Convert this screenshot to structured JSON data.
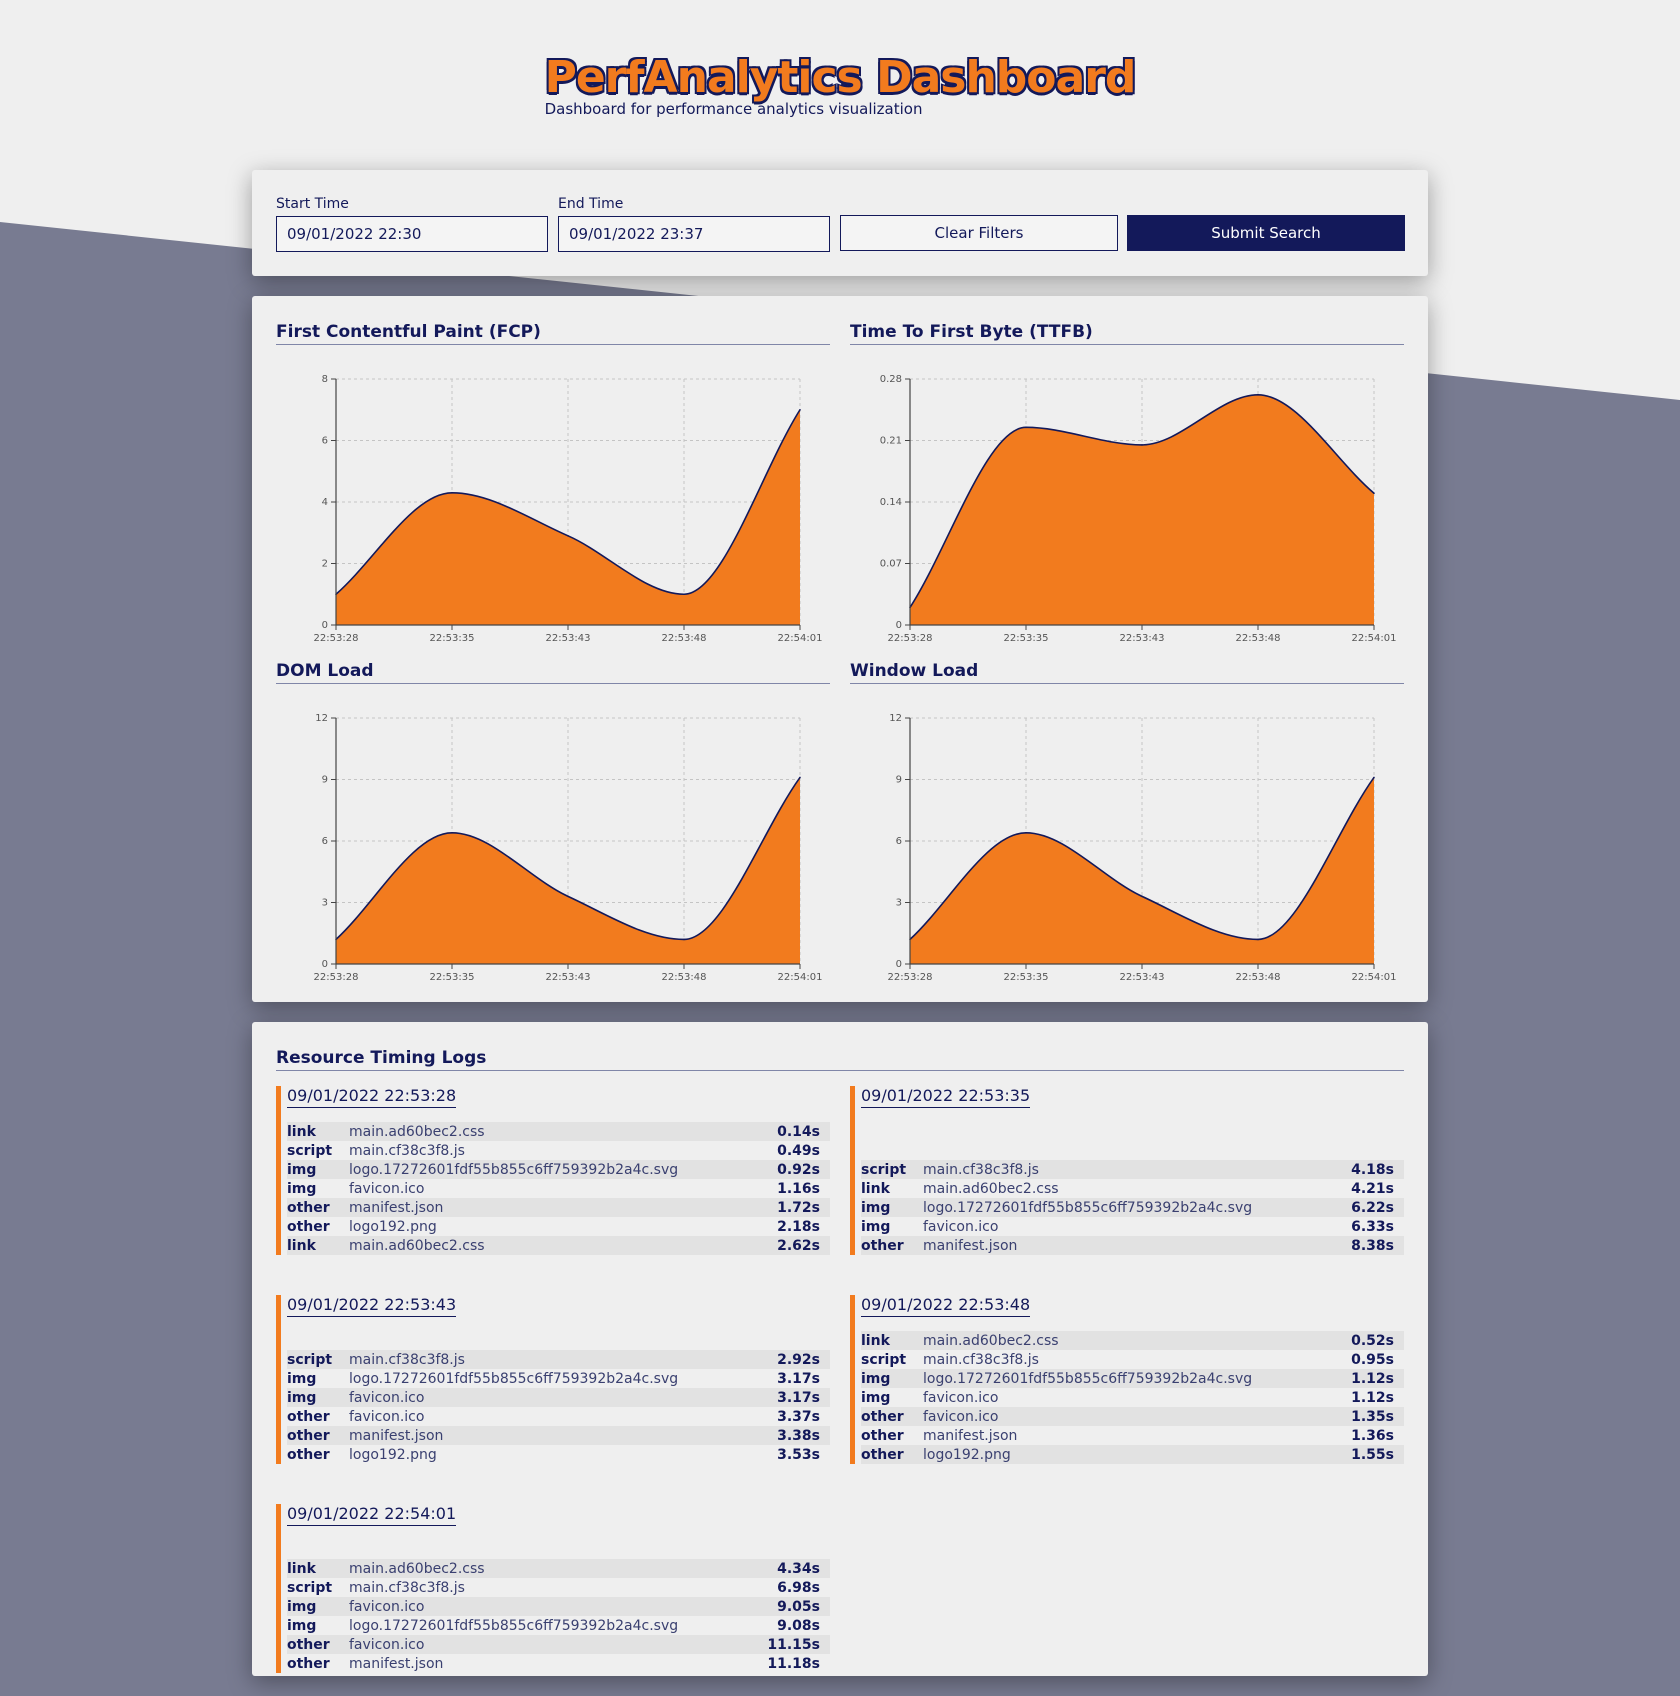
{
  "app": {
    "title": "PerfAnalytics Dashboard",
    "subtitle": "Dashboard for performance analytics visualization"
  },
  "filters": {
    "start_label": "Start Time",
    "start_value": "09/01/2022 22:30",
    "end_label": "End Time",
    "end_value": "09/01/2022 23:37",
    "clear_label": "Clear Filters",
    "submit_label": "Submit Search"
  },
  "colors": {
    "accent": "#f27b1e",
    "navy": "#13195a",
    "background": "#efefef",
    "band": "#787b91"
  },
  "chart_data": [
    {
      "type": "area",
      "title": "First Contentful Paint (FCP)",
      "x": [
        "22:53:28",
        "22:53:35",
        "22:53:43",
        "22:53:48",
        "22:54:01"
      ],
      "y_ticks": [
        "0",
        "2",
        "4",
        "6",
        "8"
      ],
      "ylim": [
        0,
        8
      ],
      "series": [
        {
          "values": [
            1.0,
            4.3,
            2.9,
            1.0,
            7.0
          ]
        }
      ],
      "grid": true
    },
    {
      "type": "area",
      "title": "Time To First Byte (TTFB)",
      "x": [
        "22:53:28",
        "22:53:35",
        "22:53:43",
        "22:53:48",
        "22:54:01"
      ],
      "y_ticks": [
        "0",
        "0.07",
        "0.14",
        "0.21",
        "0.28"
      ],
      "ylim": [
        0,
        0.28
      ],
      "series": [
        {
          "values": [
            0.02,
            0.225,
            0.205,
            0.262,
            0.15
          ]
        }
      ],
      "grid": true
    },
    {
      "type": "area",
      "title": "DOM Load",
      "x": [
        "22:53:28",
        "22:53:35",
        "22:53:43",
        "22:53:48",
        "22:54:01"
      ],
      "y_ticks": [
        "0",
        "3",
        "6",
        "9",
        "12"
      ],
      "ylim": [
        0,
        12
      ],
      "series": [
        {
          "values": [
            1.2,
            6.4,
            3.3,
            1.2,
            9.1
          ]
        }
      ],
      "grid": true
    },
    {
      "type": "area",
      "title": "Window Load",
      "x": [
        "22:53:28",
        "22:53:35",
        "22:53:43",
        "22:53:48",
        "22:54:01"
      ],
      "y_ticks": [
        "0",
        "3",
        "6",
        "9",
        "12"
      ],
      "ylim": [
        0,
        12
      ],
      "series": [
        {
          "values": [
            1.2,
            6.4,
            3.3,
            1.2,
            9.1
          ]
        }
      ],
      "grid": true
    }
  ],
  "logs": {
    "title": "Resource Timing Logs",
    "groups": [
      {
        "time": "09/01/2022 22:53:28",
        "rows": [
          {
            "type": "link",
            "name": "main.ad60bec2.css",
            "dur": "0.14s"
          },
          {
            "type": "script",
            "name": "main.cf38c3f8.js",
            "dur": "0.49s"
          },
          {
            "type": "img",
            "name": "logo.17272601fdf55b855c6ff759392b2a4c.svg",
            "dur": "0.92s"
          },
          {
            "type": "img",
            "name": "favicon.ico",
            "dur": "1.16s"
          },
          {
            "type": "other",
            "name": "manifest.json",
            "dur": "1.72s"
          },
          {
            "type": "other",
            "name": "logo192.png",
            "dur": "2.18s"
          },
          {
            "type": "link",
            "name": "main.ad60bec2.css",
            "dur": "2.62s"
          }
        ]
      },
      {
        "time": "09/01/2022 22:53:35",
        "rows": [
          {
            "type": "script",
            "name": "main.cf38c3f8.js",
            "dur": "4.18s"
          },
          {
            "type": "link",
            "name": "main.ad60bec2.css",
            "dur": "4.21s"
          },
          {
            "type": "img",
            "name": "logo.17272601fdf55b855c6ff759392b2a4c.svg",
            "dur": "6.22s"
          },
          {
            "type": "img",
            "name": "favicon.ico",
            "dur": "6.33s"
          },
          {
            "type": "other",
            "name": "manifest.json",
            "dur": "8.38s"
          }
        ]
      },
      {
        "time": "09/01/2022 22:53:43",
        "rows": [
          {
            "type": "script",
            "name": "main.cf38c3f8.js",
            "dur": "2.92s"
          },
          {
            "type": "img",
            "name": "logo.17272601fdf55b855c6ff759392b2a4c.svg",
            "dur": "3.17s"
          },
          {
            "type": "img",
            "name": "favicon.ico",
            "dur": "3.17s"
          },
          {
            "type": "other",
            "name": "favicon.ico",
            "dur": "3.37s"
          },
          {
            "type": "other",
            "name": "manifest.json",
            "dur": "3.38s"
          },
          {
            "type": "other",
            "name": "logo192.png",
            "dur": "3.53s"
          }
        ]
      },
      {
        "time": "09/01/2022 22:53:48",
        "rows": [
          {
            "type": "link",
            "name": "main.ad60bec2.css",
            "dur": "0.52s"
          },
          {
            "type": "script",
            "name": "main.cf38c3f8.js",
            "dur": "0.95s"
          },
          {
            "type": "img",
            "name": "logo.17272601fdf55b855c6ff759392b2a4c.svg",
            "dur": "1.12s"
          },
          {
            "type": "img",
            "name": "favicon.ico",
            "dur": "1.12s"
          },
          {
            "type": "other",
            "name": "favicon.ico",
            "dur": "1.35s"
          },
          {
            "type": "other",
            "name": "manifest.json",
            "dur": "1.36s"
          },
          {
            "type": "other",
            "name": "logo192.png",
            "dur": "1.55s"
          }
        ]
      },
      {
        "time": "09/01/2022 22:54:01",
        "rows": [
          {
            "type": "link",
            "name": "main.ad60bec2.css",
            "dur": "4.34s"
          },
          {
            "type": "script",
            "name": "main.cf38c3f8.js",
            "dur": "6.98s"
          },
          {
            "type": "img",
            "name": "favicon.ico",
            "dur": "9.05s"
          },
          {
            "type": "img",
            "name": "logo.17272601fdf55b855c6ff759392b2a4c.svg",
            "dur": "9.08s"
          },
          {
            "type": "other",
            "name": "favicon.ico",
            "dur": "11.15s"
          },
          {
            "type": "other",
            "name": "manifest.json",
            "dur": "11.18s"
          }
        ]
      }
    ]
  }
}
